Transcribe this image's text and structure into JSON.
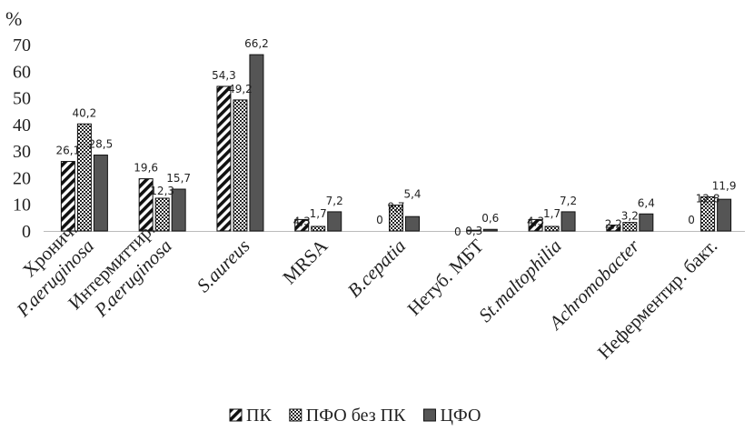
{
  "chart_data": {
    "type": "bar",
    "ylabel": "%",
    "ylim": [
      0,
      70
    ],
    "yticks": [
      0,
      10,
      20,
      30,
      40,
      50,
      60,
      70
    ],
    "grid": false,
    "legend_position": "bottom",
    "categories": [
      {
        "lines": [
          "Хронич.",
          "P.aeruginosa"
        ],
        "italic": [
          false,
          true
        ]
      },
      {
        "lines": [
          "Интермиттир.",
          "P.aeruginosa"
        ],
        "italic": [
          false,
          true
        ]
      },
      {
        "lines": [
          "S.aureus"
        ],
        "italic": [
          true
        ]
      },
      {
        "lines": [
          "MRSA"
        ],
        "italic": [
          false
        ]
      },
      {
        "lines": [
          "B.cepatia"
        ],
        "italic": [
          true
        ]
      },
      {
        "lines": [
          "Нетуб. МБТ"
        ],
        "italic": [
          false
        ]
      },
      {
        "lines": [
          "St.maltophilia"
        ],
        "italic": [
          true
        ]
      },
      {
        "lines": [
          "Achromobacter"
        ],
        "italic": [
          true
        ]
      },
      {
        "lines": [
          "Неферментир. бакт."
        ],
        "italic": [
          false
        ]
      }
    ],
    "series": [
      {
        "name": "ПК",
        "pattern": "hatch",
        "values": [
          26.1,
          19.6,
          54.3,
          4.3,
          0,
          0,
          4.3,
          2.2,
          0
        ],
        "labels": [
          "26,1",
          "19,6",
          "54,3",
          "4,3",
          "0",
          "0",
          "4,3",
          "2,2",
          "0"
        ]
      },
      {
        "name": "ПФО без ПК",
        "pattern": "dots",
        "values": [
          40.2,
          12.3,
          49.2,
          1.7,
          9.7,
          0.3,
          1.7,
          3.2,
          12.8
        ],
        "labels": [
          "40,2",
          "12,3",
          "49,2",
          "1,7",
          "9,7",
          "0,3",
          "1,7",
          "3,2",
          "12,8"
        ]
      },
      {
        "name": "ЦФО",
        "pattern": "solid",
        "values": [
          28.5,
          15.7,
          66.2,
          7.2,
          5.4,
          0.6,
          7.2,
          6.4,
          11.9
        ],
        "labels": [
          "28,5",
          "15,7",
          "66,2",
          "7,2",
          "5,4",
          "0,6",
          "7,2",
          "6,4",
          "11,9"
        ]
      }
    ],
    "colors": {
      "bar": "#555555",
      "stroke": "#111111",
      "axis": "#bbbbbb"
    }
  }
}
